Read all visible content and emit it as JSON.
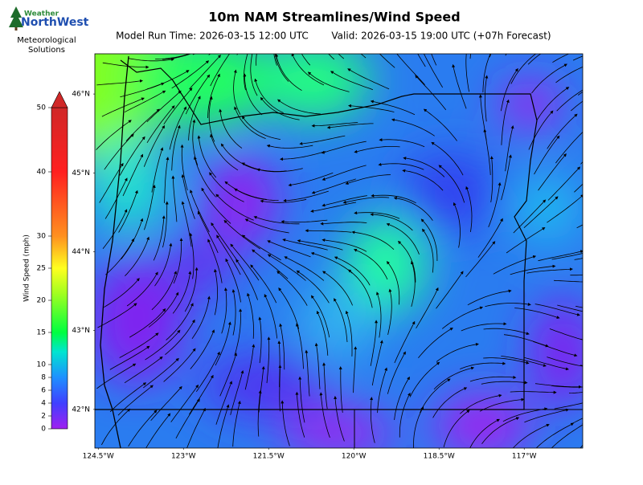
{
  "header": {
    "logo_top": "Weather",
    "logo_brand": "NorthWest",
    "logo_sub_1": "Meteorological",
    "logo_sub_2": "Solutions",
    "title": "10m NAM Streamlines/Wind Speed",
    "model_run": "Model Run Time: 2026-03-15 12:00 UTC",
    "valid": "Valid: 2026-03-15 19:00 UTC  (+07h Forecast)"
  },
  "colorbar": {
    "label": "Wind Speed (mph)",
    "lim": [
      0,
      50
    ],
    "ticks": [
      0,
      2,
      4,
      6,
      8,
      10,
      15,
      20,
      25,
      30,
      40,
      50
    ]
  },
  "map": {
    "lon_lim": [
      -124.56,
      -115.97
    ],
    "lat_lim": [
      41.51,
      46.51
    ],
    "lon_ticks": [
      {
        "value": -124.5,
        "label": "124.5°W"
      },
      {
        "value": -123,
        "label": "123°W"
      },
      {
        "value": -121.5,
        "label": "121.5°W"
      },
      {
        "value": -120,
        "label": "120°W"
      },
      {
        "value": -118.5,
        "label": "118.5°W"
      },
      {
        "value": -117,
        "label": "117°W"
      }
    ],
    "lat_ticks": [
      {
        "value": 46,
        "label": "46°N"
      },
      {
        "value": 45,
        "label": "45°N"
      },
      {
        "value": 44,
        "label": "44°N"
      },
      {
        "value": 43,
        "label": "43°N"
      },
      {
        "value": 42,
        "label": "42°N"
      }
    ]
  }
}
